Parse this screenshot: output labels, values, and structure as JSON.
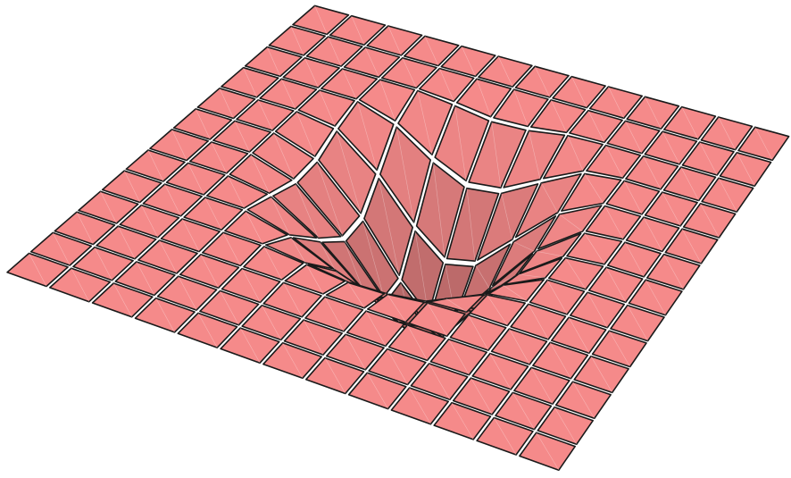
{
  "scene": {
    "background": "#ffffff",
    "tile_color": "#f58a8a",
    "edge_color": "#1a1a1a",
    "grid_size": 13,
    "well_center_cell": [
      6.3,
      5.6
    ],
    "well_depth": 1.0,
    "well_radius_cells": 4.2
  }
}
